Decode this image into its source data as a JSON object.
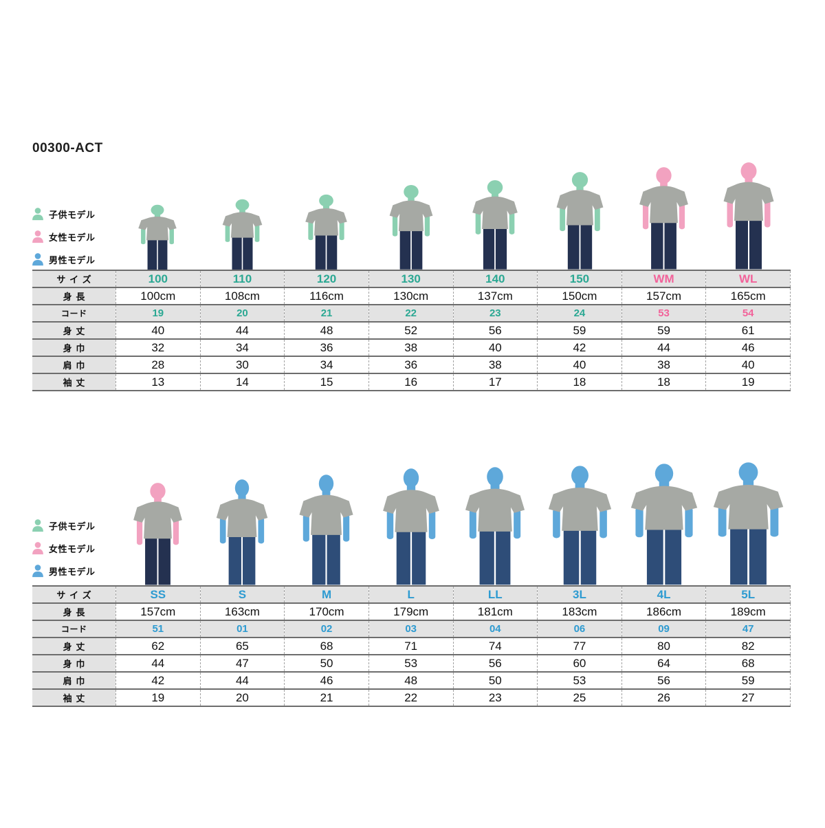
{
  "title": "00300-ACT",
  "legend": [
    {
      "label": "子供モデル",
      "type": "child"
    },
    {
      "label": "女性モデル",
      "type": "female"
    },
    {
      "label": "男性モデル",
      "type": "male"
    }
  ],
  "colors": {
    "child_model": "#8bd0b1",
    "female_model": "#f2a2c0",
    "male_model": "#5ea8da",
    "accent_kids": "#2ba893",
    "accent_women": "#f2639a",
    "accent_men": "#2e9bd1",
    "tshirt": "#a6a9a4",
    "jeans_dark": "#243150",
    "jeans_blue": "#2e4d78",
    "row_shade": "#e3e3e3"
  },
  "rows": [
    {
      "key": "size",
      "label": "サイズ",
      "shaded": true,
      "accented": true
    },
    {
      "key": "height",
      "label": "身長",
      "shaded": false,
      "accented": false
    },
    {
      "key": "code",
      "label": "コード",
      "shaded": true,
      "accented": true
    },
    {
      "key": "body_length",
      "label": "身丈",
      "shaded": false,
      "accented": false
    },
    {
      "key": "body_width",
      "label": "身巾",
      "shaded": false,
      "accented": false
    },
    {
      "key": "shoulder_width",
      "label": "肩巾",
      "shaded": false,
      "accented": false
    },
    {
      "key": "sleeve_length",
      "label": "袖丈",
      "shaded": false,
      "accented": false
    }
  ],
  "sections": [
    {
      "name": "kids-women",
      "columns": [
        {
          "size": "100",
          "height": "100cm",
          "code": "19",
          "body_length": "40",
          "body_width": "32",
          "shoulder_width": "28",
          "sleeve_length": "13",
          "accent": "kids",
          "model": "child"
        },
        {
          "size": "110",
          "height": "108cm",
          "code": "20",
          "body_length": "44",
          "body_width": "34",
          "shoulder_width": "30",
          "sleeve_length": "14",
          "accent": "kids",
          "model": "child"
        },
        {
          "size": "120",
          "height": "116cm",
          "code": "21",
          "body_length": "48",
          "body_width": "36",
          "shoulder_width": "34",
          "sleeve_length": "15",
          "accent": "kids",
          "model": "child"
        },
        {
          "size": "130",
          "height": "130cm",
          "code": "22",
          "body_length": "52",
          "body_width": "38",
          "shoulder_width": "36",
          "sleeve_length": "16",
          "accent": "kids",
          "model": "child"
        },
        {
          "size": "140",
          "height": "137cm",
          "code": "23",
          "body_length": "56",
          "body_width": "40",
          "shoulder_width": "38",
          "sleeve_length": "17",
          "accent": "kids",
          "model": "child"
        },
        {
          "size": "150",
          "height": "150cm",
          "code": "24",
          "body_length": "59",
          "body_width": "42",
          "shoulder_width": "40",
          "sleeve_length": "18",
          "accent": "kids",
          "model": "child"
        },
        {
          "size": "WM",
          "height": "157cm",
          "code": "53",
          "body_length": "59",
          "body_width": "44",
          "shoulder_width": "38",
          "sleeve_length": "18",
          "accent": "women",
          "model": "female"
        },
        {
          "size": "WL",
          "height": "165cm",
          "code": "54",
          "body_length": "61",
          "body_width": "46",
          "shoulder_width": "40",
          "sleeve_length": "19",
          "accent": "women",
          "model": "female"
        }
      ]
    },
    {
      "name": "mens",
      "columns": [
        {
          "size": "SS",
          "height": "157cm",
          "code": "51",
          "body_length": "62",
          "body_width": "44",
          "shoulder_width": "42",
          "sleeve_length": "19",
          "accent": "men",
          "model": "female"
        },
        {
          "size": "S",
          "height": "163cm",
          "code": "01",
          "body_length": "65",
          "body_width": "47",
          "shoulder_width": "44",
          "sleeve_length": "20",
          "accent": "men",
          "model": "male"
        },
        {
          "size": "M",
          "height": "170cm",
          "code": "02",
          "body_length": "68",
          "body_width": "50",
          "shoulder_width": "46",
          "sleeve_length": "21",
          "accent": "men",
          "model": "male"
        },
        {
          "size": "L",
          "height": "179cm",
          "code": "03",
          "body_length": "71",
          "body_width": "53",
          "shoulder_width": "48",
          "sleeve_length": "22",
          "accent": "men",
          "model": "male"
        },
        {
          "size": "LL",
          "height": "181cm",
          "code": "04",
          "body_length": "74",
          "body_width": "56",
          "shoulder_width": "50",
          "sleeve_length": "23",
          "accent": "men",
          "model": "male"
        },
        {
          "size": "3L",
          "height": "183cm",
          "code": "06",
          "body_length": "77",
          "body_width": "60",
          "shoulder_width": "53",
          "sleeve_length": "25",
          "accent": "men",
          "model": "male"
        },
        {
          "size": "4L",
          "height": "186cm",
          "code": "09",
          "body_length": "80",
          "body_width": "64",
          "shoulder_width": "56",
          "sleeve_length": "26",
          "accent": "men",
          "model": "male"
        },
        {
          "size": "5L",
          "height": "189cm",
          "code": "47",
          "body_length": "82",
          "body_width": "68",
          "shoulder_width": "59",
          "sleeve_length": "27",
          "accent": "men",
          "model": "male"
        }
      ]
    }
  ]
}
